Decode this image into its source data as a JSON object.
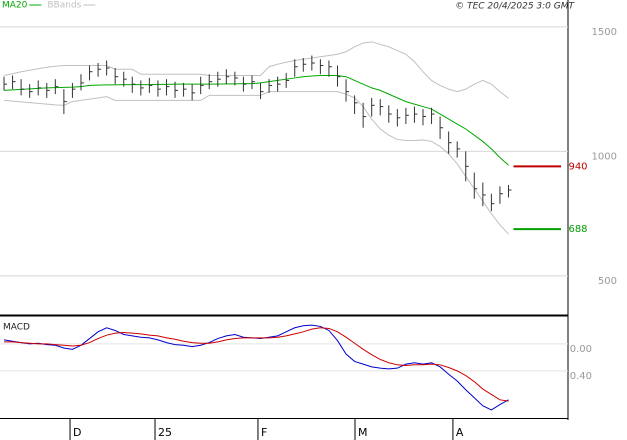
{
  "chart_data": [
    {
      "type": "ohlc",
      "source": "© TEC 20/4/2025 3:0 GMT",
      "xlim": [
        -0.47,
        65.96
      ],
      "ylim": [
        343,
        1608
      ],
      "yticks": [
        500,
        1000,
        1500
      ],
      "grid": true,
      "bar_color": "#333333",
      "high": [
        1300,
        1305,
        1290,
        1270,
        1285,
        1275,
        1290,
        1250,
        1275,
        1310,
        1345,
        1355,
        1365,
        1335,
        1320,
        1300,
        1285,
        1295,
        1285,
        1290,
        1280,
        1275,
        1270,
        1300,
        1310,
        1320,
        1330,
        1320,
        1300,
        1305,
        1275,
        1290,
        1300,
        1315,
        1370,
        1375,
        1385,
        1370,
        1365,
        1345,
        1290,
        1225,
        1195,
        1215,
        1210,
        1185,
        1170,
        1175,
        1180,
        1170,
        1175,
        1140,
        1080,
        1040,
        1000,
        915,
        875,
        830,
        860,
        865
      ],
      "low": [
        1245,
        1250,
        1225,
        1215,
        1225,
        1215,
        1230,
        1150,
        1215,
        1245,
        1285,
        1300,
        1305,
        1270,
        1260,
        1235,
        1225,
        1235,
        1220,
        1225,
        1215,
        1220,
        1205,
        1230,
        1250,
        1260,
        1270,
        1265,
        1240,
        1250,
        1210,
        1235,
        1240,
        1255,
        1300,
        1320,
        1325,
        1310,
        1300,
        1260,
        1200,
        1150,
        1095,
        1140,
        1145,
        1115,
        1100,
        1110,
        1115,
        1105,
        1110,
        1050,
        990,
        975,
        880,
        810,
        780,
        760,
        790,
        815
      ],
      "close": [
        1270,
        1280,
        1250,
        1240,
        1255,
        1245,
        1260,
        1200,
        1250,
        1275,
        1320,
        1330,
        1335,
        1300,
        1290,
        1270,
        1255,
        1265,
        1250,
        1260,
        1245,
        1250,
        1235,
        1265,
        1280,
        1290,
        1300,
        1295,
        1270,
        1280,
        1240,
        1265,
        1270,
        1285,
        1340,
        1350,
        1355,
        1345,
        1340,
        1300,
        1240,
        1195,
        1140,
        1185,
        1180,
        1150,
        1135,
        1145,
        1150,
        1140,
        1150,
        1095,
        1035,
        1010,
        940,
        850,
        825,
        790,
        830,
        845
      ],
      "series": [
        {
          "name": "MA20",
          "color": "#00a800",
          "values": [
            1245,
            1247,
            1249,
            1251,
            1253,
            1255,
            1256,
            1257,
            1258,
            1260,
            1265,
            1266,
            1267,
            1267,
            1268,
            1268,
            1268,
            1268,
            1269,
            1269,
            1270,
            1270,
            1270,
            1270,
            1270,
            1270,
            1271,
            1271,
            1272,
            1272,
            1275,
            1280,
            1285,
            1290,
            1295,
            1300,
            1303,
            1305,
            1305,
            1305,
            1300,
            1285,
            1270,
            1255,
            1245,
            1230,
            1215,
            1200,
            1190,
            1180,
            1170,
            1150,
            1130,
            1110,
            1090,
            1065,
            1040,
            1010,
            975,
            945
          ]
        },
        {
          "name": "BBands",
          "color": "#c0c0c0",
          "upper": [
            1305,
            1312,
            1320,
            1326,
            1332,
            1338,
            1342,
            1345,
            1345,
            1345,
            1345,
            1345,
            1345,
            1330,
            1330,
            1330,
            1310,
            1310,
            1310,
            1310,
            1310,
            1310,
            1310,
            1310,
            1305,
            1305,
            1305,
            1305,
            1305,
            1305,
            1305,
            1340,
            1350,
            1358,
            1365,
            1370,
            1375,
            1380,
            1385,
            1390,
            1400,
            1420,
            1435,
            1440,
            1430,
            1420,
            1405,
            1390,
            1360,
            1320,
            1285,
            1265,
            1250,
            1240,
            1250,
            1270,
            1285,
            1270,
            1240,
            1213
          ],
          "lower": [
            1205,
            1202,
            1199,
            1196,
            1193,
            1190,
            1187,
            1185,
            1200,
            1205,
            1210,
            1215,
            1220,
            1205,
            1205,
            1205,
            1205,
            1205,
            1205,
            1205,
            1205,
            1205,
            1205,
            1205,
            1225,
            1225,
            1225,
            1225,
            1225,
            1225,
            1225,
            1240,
            1240,
            1240,
            1240,
            1240,
            1240,
            1240,
            1240,
            1240,
            1230,
            1215,
            1180,
            1130,
            1090,
            1065,
            1048,
            1044,
            1044,
            1046,
            1040,
            1020,
            990,
            950,
            900,
            850,
            800,
            750,
            705,
            668
          ]
        }
      ],
      "annotations": [
        {
          "value": 940,
          "color": "#c00000"
        },
        {
          "value": 688,
          "color": "#00a000"
        }
      ]
    },
    {
      "type": "line",
      "title": "MACD",
      "xlim": [
        -0.47,
        65.96
      ],
      "ylim": [
        -1.1,
        0.4
      ],
      "yticks": [
        {
          "value": 0,
          "label": "0.00"
        },
        {
          "value": -0.4,
          "label": "-0.40"
        }
      ],
      "xticks": [
        {
          "value": 7.72,
          "label": "D"
        },
        {
          "value": 17.66,
          "label": "25"
        },
        {
          "value": 29.7,
          "label": "F"
        },
        {
          "value": 41.05,
          "label": "M"
        },
        {
          "value": 52.5,
          "label": "A"
        }
      ],
      "series": [
        {
          "color": "#0000cc",
          "values": [
            0.06,
            0.04,
            0.02,
            0,
            0.01,
            -0.01,
            -0.02,
            -0.06,
            -0.08,
            -0.02,
            0.08,
            0.18,
            0.24,
            0.2,
            0.14,
            0.12,
            0.1,
            0.09,
            0.06,
            0.02,
            -0.01,
            -0.02,
            -0.04,
            -0.02,
            0.02,
            0.08,
            0.12,
            0.14,
            0.1,
            0.09,
            0.08,
            0.1,
            0.12,
            0.18,
            0.24,
            0.27,
            0.28,
            0.26,
            0.2,
            0.05,
            -0.15,
            -0.26,
            -0.3,
            -0.34,
            -0.36,
            -0.37,
            -0.36,
            -0.3,
            -0.28,
            -0.3,
            -0.28,
            -0.34,
            -0.45,
            -0.55,
            -0.68,
            -0.8,
            -0.92,
            -0.98,
            -0.9,
            -0.83
          ]
        },
        {
          "color": "#cc0000",
          "values": [
            0.03,
            0.03,
            0.02,
            0.01,
            0,
            0,
            -0.01,
            -0.02,
            -0.03,
            -0.02,
            0.02,
            0.08,
            0.13,
            0.16,
            0.17,
            0.16,
            0.15,
            0.13,
            0.12,
            0.09,
            0.07,
            0.04,
            0.02,
            0.01,
            0.01,
            0.03,
            0.06,
            0.08,
            0.09,
            0.09,
            0.09,
            0.09,
            0.1,
            0.12,
            0.15,
            0.18,
            0.22,
            0.24,
            0.23,
            0.18,
            0.1,
            0.01,
            -0.08,
            -0.16,
            -0.23,
            -0.28,
            -0.31,
            -0.32,
            -0.31,
            -0.31,
            -0.3,
            -0.31,
            -0.35,
            -0.4,
            -0.47,
            -0.56,
            -0.67,
            -0.75,
            -0.83,
            -0.85
          ]
        }
      ]
    }
  ]
}
